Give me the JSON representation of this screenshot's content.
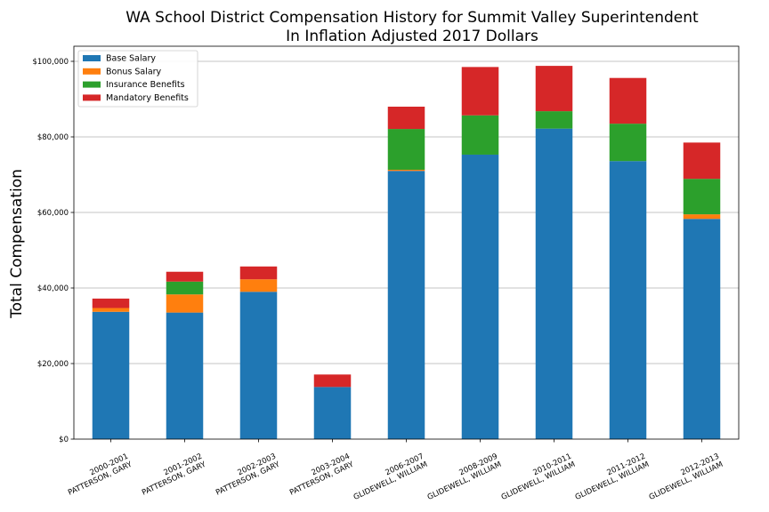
{
  "chart_data": {
    "type": "bar",
    "stacked": true,
    "title": "WA School District Compensation History for Summit Valley Superintendent",
    "subtitle": "In Inflation Adjusted 2017 Dollars",
    "xlabel": "",
    "ylabel": "Total Compensation",
    "ylim": [
      0,
      104000
    ],
    "yticks": [
      "$0",
      "$20,000",
      "$40,000",
      "$60,000",
      "$80,000",
      "$100,000"
    ],
    "ytick_values": [
      0,
      20000,
      40000,
      60000,
      80000,
      100000
    ],
    "grid": "horizontal",
    "legend_position": "top-left",
    "categories": [
      [
        "2000-2001",
        "PATTERSON, GARY"
      ],
      [
        "2001-2002",
        "PATTERSON, GARY"
      ],
      [
        "2002-2003",
        "PATTERSON, GARY"
      ],
      [
        "2003-2004",
        "PATTERSON, GARY"
      ],
      [
        "2006-2007",
        "GLIDEWELL, WILLIAM"
      ],
      [
        "2008-2009",
        "GLIDEWELL, WILLIAM"
      ],
      [
        "2010-2011",
        "GLIDEWELL, WILLIAM"
      ],
      [
        "2011-2012",
        "GLIDEWELL, WILLIAM"
      ],
      [
        "2012-2013",
        "GLIDEWELL, WILLIAM"
      ]
    ],
    "series": [
      {
        "name": "Base Salary",
        "color": "#1f77b4",
        "values": [
          33700,
          33500,
          39000,
          13800,
          71000,
          75300,
          82200,
          73600,
          58300
        ]
      },
      {
        "name": "Bonus Salary",
        "color": "#ff7f0e",
        "values": [
          1000,
          4800,
          3300,
          0,
          300,
          0,
          0,
          0,
          1200
        ]
      },
      {
        "name": "Insurance Benefits",
        "color": "#2ca02c",
        "values": [
          0,
          3400,
          0,
          0,
          10800,
          10400,
          4600,
          9900,
          9400
        ]
      },
      {
        "name": "Mandatory Benefits",
        "color": "#d62728",
        "values": [
          2500,
          2600,
          3400,
          3300,
          5900,
          12800,
          12000,
          12100,
          9600
        ]
      }
    ]
  }
}
